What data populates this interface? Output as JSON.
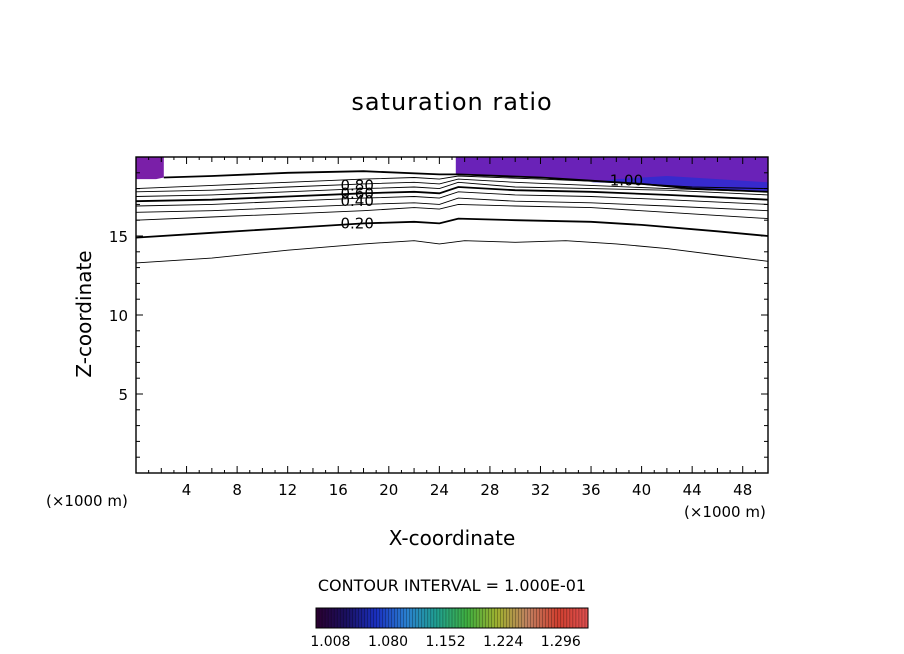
{
  "chart_data": {
    "type": "contour",
    "title": "saturation ratio",
    "xlabel": "X-coordinate",
    "ylabel": "Z-coordinate",
    "x_unit_note": "(×1000 m)",
    "y_unit_note": "(×1000 m)",
    "xlim": [
      0,
      50
    ],
    "ylim": [
      0,
      20
    ],
    "x_ticks": [
      "4",
      "8",
      "12",
      "16",
      "20",
      "24",
      "28",
      "32",
      "36",
      "40",
      "44",
      "48"
    ],
    "x_tick_values": [
      4,
      8,
      12,
      16,
      20,
      24,
      28,
      32,
      36,
      40,
      44,
      48
    ],
    "y_ticks": [
      "5",
      "10",
      "15"
    ],
    "y_tick_values": [
      5,
      10,
      15
    ],
    "contour_interval_text": "CONTOUR INTERVAL = 1.000E-01",
    "contour_labels": [
      {
        "text": "0.80",
        "x": 17.5,
        "z": 18.2
      },
      {
        "text": "0.60",
        "x": 17.5,
        "z": 17.7
      },
      {
        "text": "0.40",
        "x": 17.5,
        "z": 17.2
      },
      {
        "text": "0.20",
        "x": 17.5,
        "z": 15.8
      },
      {
        "text": "1.00",
        "x": 38.8,
        "z": 18.5
      }
    ],
    "contours": [
      {
        "level": 0.1,
        "bold": false,
        "points": [
          [
            0,
            13.3
          ],
          [
            6,
            13.6
          ],
          [
            12,
            14.1
          ],
          [
            18,
            14.5
          ],
          [
            22,
            14.7
          ],
          [
            24,
            14.5
          ],
          [
            26,
            14.7
          ],
          [
            30,
            14.6
          ],
          [
            34,
            14.7
          ],
          [
            38,
            14.5
          ],
          [
            42,
            14.2
          ],
          [
            46,
            13.8
          ],
          [
            50,
            13.4
          ]
        ]
      },
      {
        "level": 0.2,
        "bold": true,
        "points": [
          [
            0,
            14.9
          ],
          [
            6,
            15.2
          ],
          [
            12,
            15.5
          ],
          [
            18,
            15.8
          ],
          [
            22,
            15.9
          ],
          [
            24,
            15.8
          ],
          [
            25.5,
            16.1
          ],
          [
            30,
            16.0
          ],
          [
            36,
            15.9
          ],
          [
            40,
            15.7
          ],
          [
            46,
            15.3
          ],
          [
            50,
            15.0
          ]
        ]
      },
      {
        "level": 0.3,
        "bold": false,
        "points": [
          [
            0,
            16.0
          ],
          [
            6,
            16.2
          ],
          [
            12,
            16.4
          ],
          [
            18,
            16.6
          ],
          [
            22,
            16.8
          ],
          [
            24,
            16.7
          ],
          [
            25.5,
            17.0
          ],
          [
            30,
            16.9
          ],
          [
            36,
            16.8
          ],
          [
            42,
            16.5
          ],
          [
            50,
            16.1
          ]
        ]
      },
      {
        "level": 0.4,
        "bold": false,
        "points": [
          [
            0,
            16.5
          ],
          [
            6,
            16.6
          ],
          [
            12,
            16.8
          ],
          [
            18,
            17.0
          ],
          [
            22,
            17.1
          ],
          [
            24,
            17.0
          ],
          [
            25.5,
            17.4
          ],
          [
            30,
            17.2
          ],
          [
            36,
            17.1
          ],
          [
            42,
            16.9
          ],
          [
            50,
            16.6
          ]
        ]
      },
      {
        "level": 0.5,
        "bold": false,
        "points": [
          [
            0,
            16.9
          ],
          [
            6,
            17.0
          ],
          [
            12,
            17.2
          ],
          [
            18,
            17.4
          ],
          [
            22,
            17.5
          ],
          [
            24,
            17.4
          ],
          [
            25.5,
            17.8
          ],
          [
            30,
            17.6
          ],
          [
            36,
            17.5
          ],
          [
            42,
            17.3
          ],
          [
            50,
            17.0
          ]
        ]
      },
      {
        "level": 0.6,
        "bold": true,
        "points": [
          [
            0,
            17.2
          ],
          [
            6,
            17.3
          ],
          [
            12,
            17.5
          ],
          [
            18,
            17.7
          ],
          [
            22,
            17.8
          ],
          [
            24,
            17.7
          ],
          [
            25.5,
            18.1
          ],
          [
            30,
            17.9
          ],
          [
            36,
            17.8
          ],
          [
            42,
            17.6
          ],
          [
            50,
            17.3
          ]
        ]
      },
      {
        "level": 0.7,
        "bold": false,
        "points": [
          [
            0,
            17.5
          ],
          [
            6,
            17.6
          ],
          [
            12,
            17.8
          ],
          [
            18,
            18.0
          ],
          [
            22,
            18.1
          ],
          [
            24,
            18.0
          ],
          [
            25.5,
            18.4
          ],
          [
            30,
            18.1
          ],
          [
            36,
            18.0
          ],
          [
            42,
            17.9
          ],
          [
            50,
            17.6
          ]
        ]
      },
      {
        "level": 0.8,
        "bold": false,
        "points": [
          [
            0,
            17.8
          ],
          [
            6,
            17.9
          ],
          [
            12,
            18.1
          ],
          [
            18,
            18.3
          ],
          [
            22,
            18.4
          ],
          [
            24,
            18.3
          ],
          [
            25.5,
            18.6
          ],
          [
            30,
            18.4
          ],
          [
            36,
            18.2
          ],
          [
            42,
            18.0
          ],
          [
            50,
            17.8
          ]
        ]
      },
      {
        "level": 0.9,
        "bold": false,
        "points": [
          [
            0,
            18.0
          ],
          [
            6,
            18.2
          ],
          [
            12,
            18.4
          ],
          [
            18,
            18.6
          ],
          [
            22,
            18.7
          ],
          [
            24,
            18.6
          ],
          [
            25.5,
            18.8
          ],
          [
            32,
            18.6
          ],
          [
            38,
            18.4
          ],
          [
            44,
            18.1
          ],
          [
            50,
            18.0
          ]
        ]
      },
      {
        "level": 1.0,
        "bold": true,
        "points": [
          [
            2.2,
            18.7
          ],
          [
            6,
            18.8
          ],
          [
            12,
            19.0
          ],
          [
            18,
            19.1
          ],
          [
            24,
            18.9
          ],
          [
            25.5,
            18.9
          ],
          [
            32,
            18.7
          ],
          [
            36,
            18.5
          ],
          [
            40,
            18.3
          ],
          [
            44,
            18.0
          ],
          [
            50,
            17.8
          ]
        ]
      }
    ],
    "shaded_regions": [
      {
        "points": [
          [
            0,
            20
          ],
          [
            2.2,
            20
          ],
          [
            2.2,
            18.7
          ],
          [
            1.6,
            18.6
          ],
          [
            0,
            18.6
          ]
        ],
        "color": "#7a1fa8"
      },
      {
        "points": [
          [
            25.3,
            20
          ],
          [
            50,
            20
          ],
          [
            50,
            17.8
          ],
          [
            46,
            17.9
          ],
          [
            42,
            18.1
          ],
          [
            38,
            18.4
          ],
          [
            34,
            18.6
          ],
          [
            30,
            18.7
          ],
          [
            27,
            18.8
          ],
          [
            25.3,
            18.9
          ]
        ],
        "color": "#6a22b8"
      }
    ],
    "shaded_core": {
      "points": [
        [
          36,
          18.4
        ],
        [
          40,
          18.3
        ],
        [
          44,
          18.0
        ],
        [
          50,
          17.8
        ],
        [
          50,
          18.4
        ],
        [
          46,
          18.6
        ],
        [
          42,
          18.8
        ],
        [
          38,
          18.6
        ]
      ],
      "color": "#2e2cd0"
    },
    "colorbar": {
      "tick_labels": [
        "1.008",
        "1.080",
        "1.152",
        "1.224",
        "1.296"
      ],
      "tick_values": [
        1.008,
        1.08,
        1.152,
        1.224,
        1.296
      ],
      "range": [
        0.99,
        1.33
      ],
      "colors": [
        "#2b0030",
        "#1a1060",
        "#1a30c0",
        "#2a80d0",
        "#20a090",
        "#40b040",
        "#a0b030",
        "#c08060",
        "#d04030",
        "#e05050"
      ]
    },
    "grid": false,
    "legend": "colorbar-bottom"
  }
}
